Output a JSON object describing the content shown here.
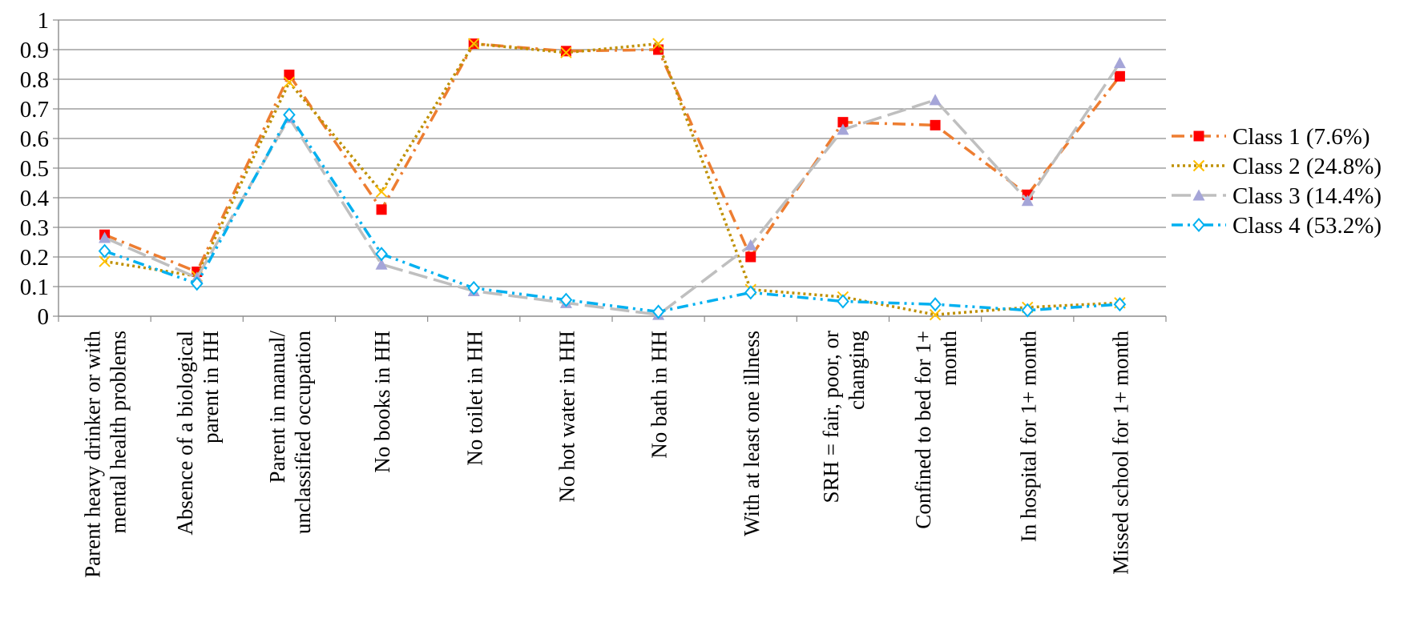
{
  "chart_data": {
    "type": "line",
    "title": "",
    "xlabel": "",
    "ylabel": "",
    "ylim": [
      0,
      1
    ],
    "yticks": [
      0,
      0.1,
      0.2,
      0.3,
      0.4,
      0.5,
      0.6,
      0.7,
      0.8,
      0.9,
      1
    ],
    "ytick_labels": [
      "0",
      "0.1",
      "0.2",
      "0.3",
      "0.4",
      "0.5",
      "0.6",
      "0.7",
      "0.8",
      "0.9",
      "1"
    ],
    "grid": "horizontal",
    "legend_position": "right",
    "categories": [
      [
        "Parent heavy drinker or with",
        "mental health problems"
      ],
      [
        "Absence of a biological",
        "parent in HH"
      ],
      [
        "Parent in manual/",
        "unclassified occupation"
      ],
      [
        "No books in HH"
      ],
      [
        "No toilet in HH"
      ],
      [
        "No hot water in HH"
      ],
      [
        "No bath in HH"
      ],
      [
        "With at least one illness"
      ],
      [
        "SRH = fair, poor, or",
        "changing"
      ],
      [
        "Confined to bed for 1+",
        "month"
      ],
      [
        "In hospital for 1+ month"
      ],
      [
        "Missed school for 1+ month"
      ]
    ],
    "series": [
      {
        "name": "Class 1 (7.6%)",
        "color": "#ED7D31",
        "marker": "square",
        "marker_color": "#FF0000",
        "dash": "dash-dot",
        "values": [
          0.275,
          0.15,
          0.815,
          0.36,
          0.92,
          0.895,
          0.9,
          0.2,
          0.655,
          0.645,
          0.41,
          0.81
        ]
      },
      {
        "name": "Class 2 (24.8%)",
        "color": "#BF9000",
        "marker": "x",
        "marker_color": "#FFC000",
        "dash": "dotted",
        "values": [
          0.185,
          0.135,
          0.79,
          0.42,
          0.92,
          0.89,
          0.92,
          0.09,
          0.065,
          0.005,
          0.03,
          0.045
        ]
      },
      {
        "name": "Class 3 (14.4%)",
        "color": "#BFBFBF",
        "marker": "triangle",
        "marker_color": "#A5A5D8",
        "dash": "long-dash",
        "values": [
          0.265,
          0.13,
          0.67,
          0.175,
          0.085,
          0.045,
          0.005,
          0.24,
          0.63,
          0.73,
          0.39,
          0.855
        ]
      },
      {
        "name": "Class 4 (53.2%)",
        "color": "#00B0F0",
        "marker": "diamond",
        "marker_color": "#00B0F0",
        "dash": "dash-dot-dot",
        "values": [
          0.22,
          0.11,
          0.68,
          0.21,
          0.095,
          0.055,
          0.015,
          0.08,
          0.05,
          0.04,
          0.02,
          0.04
        ]
      }
    ]
  }
}
